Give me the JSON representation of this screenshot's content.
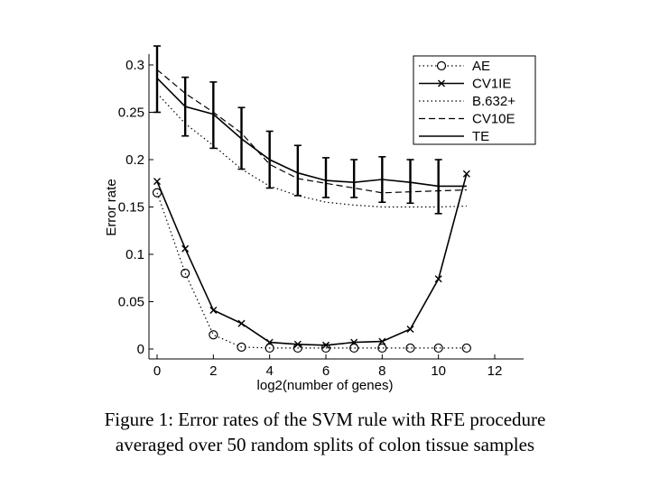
{
  "caption": {
    "line1": "Figure 1: Error rates of the SVM rule with RFE procedure",
    "line2": "averaged over 50 random splits of colon tissue samples"
  },
  "chart_data": {
    "type": "line",
    "title": "",
    "xlabel": "log2(number of genes)",
    "ylabel": "Error rate",
    "xlim": [
      0,
      12
    ],
    "ylim": [
      0,
      0.3
    ],
    "xticks": [
      0,
      2,
      4,
      6,
      8,
      10,
      12
    ],
    "xtick_labels": [
      "0",
      "2",
      "4",
      "6",
      "8",
      "10",
      "12"
    ],
    "yticks": [
      0,
      0.05,
      0.1,
      0.15,
      0.2,
      0.25,
      0.3
    ],
    "ytick_labels": [
      "0",
      "0.05",
      "0.1",
      "0.15",
      "0.2",
      "0.25",
      "0.3"
    ],
    "grid": false,
    "legend_position": "top-right",
    "x": [
      0,
      1,
      2,
      3,
      4,
      5,
      6,
      7,
      8,
      9,
      10,
      11
    ],
    "series": [
      {
        "name": "AE",
        "style": "dotted",
        "marker": "o",
        "values": [
          0.165,
          0.08,
          0.015,
          0.002,
          0.001,
          0.001,
          0.001,
          0.001,
          0.001,
          0.001,
          0.001,
          0.001
        ]
      },
      {
        "name": "CV1IE",
        "style": "solid",
        "marker": "x",
        "values": [
          0.177,
          0.106,
          0.041,
          0.027,
          0.007,
          0.005,
          0.004,
          0.007,
          0.008,
          0.021,
          0.074,
          0.185
        ]
      },
      {
        "name": "B.632+",
        "style": "dotted",
        "marker": "",
        "values": [
          0.27,
          0.238,
          0.215,
          0.19,
          0.172,
          0.162,
          0.155,
          0.152,
          0.15,
          0.15,
          0.15,
          0.151
        ]
      },
      {
        "name": "CV10E",
        "style": "dashed",
        "marker": "",
        "values": [
          0.295,
          0.27,
          0.25,
          0.228,
          0.195,
          0.18,
          0.175,
          0.17,
          0.165,
          0.166,
          0.167,
          0.168
        ]
      },
      {
        "name": "TE",
        "style": "solid",
        "marker": "",
        "values": [
          0.286,
          0.256,
          0.248,
          0.222,
          0.2,
          0.186,
          0.178,
          0.176,
          0.179,
          0.176,
          0.172,
          0.172
        ]
      }
    ],
    "error_bars": {
      "series": "TE",
      "x": [
        0,
        1,
        2,
        3,
        4,
        5,
        6,
        7,
        8,
        9,
        10
      ],
      "low": [
        0.25,
        0.225,
        0.212,
        0.19,
        0.17,
        0.162,
        0.16,
        0.16,
        0.155,
        0.154,
        0.143
      ],
      "high": [
        0.32,
        0.287,
        0.282,
        0.255,
        0.23,
        0.215,
        0.202,
        0.2,
        0.203,
        0.2,
        0.2
      ]
    }
  }
}
